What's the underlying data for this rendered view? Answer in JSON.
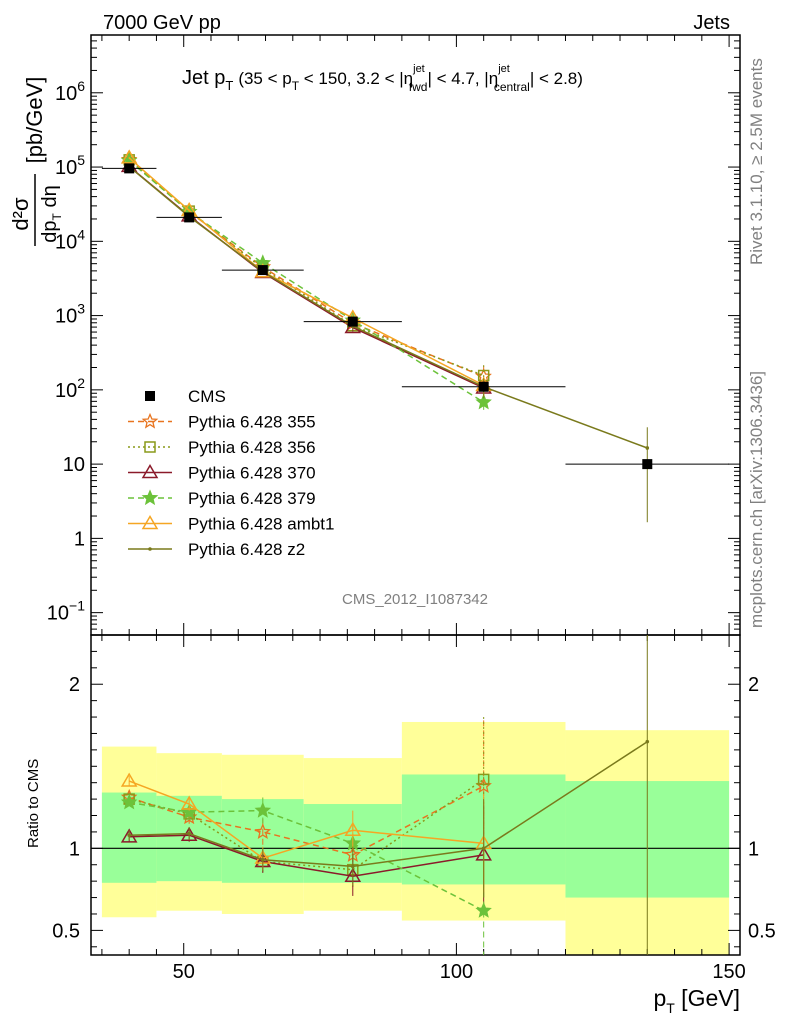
{
  "header": {
    "left": "7000 GeV pp",
    "right": "Jets"
  },
  "side": {
    "rivet": "Rivet 3.1.10, ≥ 2.5M events",
    "mcplots": "mcplots.cern.ch [arXiv:1306.3436]"
  },
  "plot_title": {
    "main": "Jet p",
    "main_sub": "T",
    "range_a": "(35 < p",
    "range_a_sub": "T",
    "range_b": " < 150, 3.2 < |η",
    "range_b_sup": "jet",
    "range_b_sub": "fwd",
    "range_c": "| < 4.7, |η",
    "range_c_sup": "jet",
    "range_c_sub": "central",
    "range_d": "| < 2.8)"
  },
  "analysis_id": "CMS_2012_I1087342",
  "ylabel_top": "[pb/GeV]",
  "ylabel_ratio": "Ratio to CMS",
  "xlabel": "p",
  "xlabel_sub": "T",
  "xlabel_unit": " [GeV]",
  "colors": {
    "cms": "#000000",
    "p355": "#e8741f",
    "p356": "#8a9a1a",
    "p370": "#8b1a2a",
    "p379": "#6cc23a",
    "ambt1": "#f5a623",
    "z2": "#7a7a1c",
    "band_yellow": "#ffff99",
    "band_green": "#99ff99"
  },
  "chart_data": {
    "type": "line",
    "x_range": [
      33,
      152
    ],
    "y_range_main": [
      0.05,
      6000000
    ],
    "y_scale_main": "log",
    "y_range_ratio": [
      0.35,
      2.3
    ],
    "x_ticks": [
      {
        "v": 50,
        "label": "50"
      },
      {
        "v": 100,
        "label": "100"
      },
      {
        "v": 150,
        "label": "150"
      }
    ],
    "y_ticks_main": [
      {
        "v": 0.1,
        "base": "10",
        "exp": "−1"
      },
      {
        "v": 1,
        "base": "1",
        "exp": ""
      },
      {
        "v": 10,
        "base": "10",
        "exp": ""
      },
      {
        "v": 100,
        "base": "10",
        "exp": "2"
      },
      {
        "v": 1000,
        "base": "10",
        "exp": "3"
      },
      {
        "v": 10000,
        "base": "10",
        "exp": "4"
      },
      {
        "v": 100000,
        "base": "10",
        "exp": "5"
      },
      {
        "v": 1000000,
        "base": "10",
        "exp": "6"
      }
    ],
    "y_ticks_ratio": [
      {
        "v": 0.5,
        "label": "0.5"
      },
      {
        "v": 1,
        "label": "1"
      },
      {
        "v": 2,
        "label": "2"
      }
    ],
    "cms": {
      "name": "CMS",
      "bins": [
        [
          35,
          45
        ],
        [
          45,
          57
        ],
        [
          57,
          72
        ],
        [
          72,
          90
        ],
        [
          90,
          120
        ],
        [
          120,
          150
        ]
      ],
      "x": [
        40,
        51,
        64.5,
        81,
        105,
        135
      ],
      "y": [
        96000,
        21000,
        4100,
        830,
        110,
        10
      ],
      "band_yellow": [
        [
          0.58,
          1.62
        ],
        [
          0.62,
          1.58
        ],
        [
          0.6,
          1.57
        ],
        [
          0.62,
          1.55
        ],
        [
          0.56,
          1.77
        ],
        [
          0.3,
          1.72
        ]
      ],
      "band_green": [
        [
          0.79,
          1.34
        ],
        [
          0.8,
          1.32
        ],
        [
          0.79,
          1.3
        ],
        [
          0.79,
          1.27
        ],
        [
          0.78,
          1.45
        ],
        [
          0.7,
          1.41
        ]
      ]
    },
    "series": [
      {
        "name": "Pythia 6.428 355",
        "key": "p355",
        "style": "dash",
        "marker": "star-open",
        "x": [
          40,
          51,
          64.5,
          81,
          105
        ],
        "y": [
          125000,
          25000,
          4500,
          790,
          151
        ],
        "ratio": [
          1.31,
          1.19,
          1.1,
          0.96,
          1.38
        ],
        "ratio_err": [
          0.03,
          0.04,
          0.08,
          0.12,
          0.4
        ]
      },
      {
        "name": "Pythia 6.428 356",
        "key": "p356",
        "style": "dot",
        "marker": "square-open",
        "x": [
          40,
          51,
          64.5,
          81,
          105
        ],
        "y": [
          125000,
          25500,
          4300,
          730,
          156
        ],
        "ratio": [
          1.3,
          1.21,
          0.92,
          0.87,
          1.42
        ],
        "ratio_err": [
          0.03,
          0.04,
          0.07,
          0.12,
          0.38
        ]
      },
      {
        "name": "Pythia 6.428 370",
        "key": "p370",
        "style": "solid",
        "marker": "triangle-open",
        "x": [
          40,
          51,
          64.5,
          81,
          105
        ],
        "y": [
          102000,
          22000,
          3800,
          690,
          106
        ],
        "ratio": [
          1.07,
          1.08,
          0.92,
          0.83,
          0.96
        ],
        "ratio_err": [
          0.03,
          0.04,
          0.07,
          0.12,
          0.3
        ]
      },
      {
        "name": "Pythia 6.428 379",
        "key": "p379",
        "style": "dash",
        "marker": "star",
        "x": [
          40,
          51,
          64.5,
          81,
          105
        ],
        "y": [
          122000,
          25000,
          5100,
          860,
          68
        ],
        "ratio": [
          1.28,
          1.22,
          1.23,
          1.03,
          0.62
        ],
        "ratio_err": [
          0.03,
          0.04,
          0.08,
          0.12,
          0.3
        ]
      },
      {
        "name": "Pythia 6.428 ambt1",
        "key": "ambt1",
        "style": "solid",
        "marker": "triangle-open",
        "x": [
          40,
          51,
          64.5,
          81,
          105
        ],
        "y": [
          133000,
          26000,
          3900,
          930,
          115
        ],
        "ratio": [
          1.41,
          1.27,
          0.94,
          1.11,
          1.03
        ],
        "ratio_err": [
          0.03,
          0.04,
          0.07,
          0.12,
          0.3
        ]
      },
      {
        "name": "Pythia 6.428 z2",
        "key": "z2",
        "style": "solid",
        "marker": "dot",
        "x": [
          40,
          51,
          64.5,
          81,
          105,
          135
        ],
        "y": [
          101000,
          21500,
          3900,
          720,
          110,
          16.5
        ],
        "ratio": [
          1.08,
          1.09,
          0.93,
          0.89,
          1.0,
          1.65
        ],
        "ratio_err": [
          0.03,
          0.04,
          0.07,
          0.12,
          0.3,
          1.65
        ]
      }
    ]
  }
}
